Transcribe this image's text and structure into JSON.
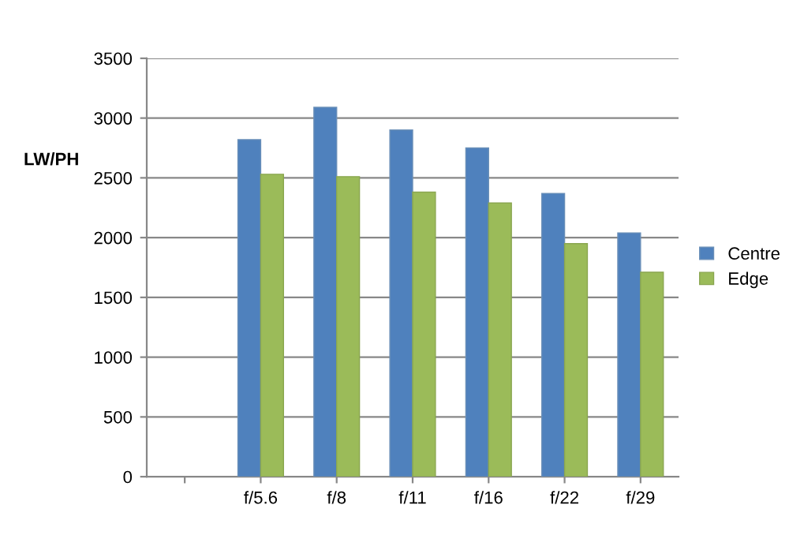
{
  "chart_data": {
    "type": "bar",
    "ylabel": "LW/PH",
    "categories": [
      null,
      "f/5.6",
      "f/8",
      "f/11",
      "f/16",
      "f/22",
      "f/29"
    ],
    "series": [
      {
        "name": "Centre",
        "color": "#4f81bd",
        "values": [
          null,
          2820,
          3090,
          2900,
          2750,
          2370,
          2040
        ]
      },
      {
        "name": "Edge",
        "color": "#9bbb59",
        "values": [
          null,
          2530,
          2510,
          2380,
          2290,
          1950,
          1710
        ]
      }
    ],
    "ylim": [
      0,
      3500
    ],
    "yticks": [
      0,
      500,
      1000,
      1500,
      2000,
      2500,
      3000,
      3500
    ],
    "grid": "y",
    "legend": "right"
  }
}
